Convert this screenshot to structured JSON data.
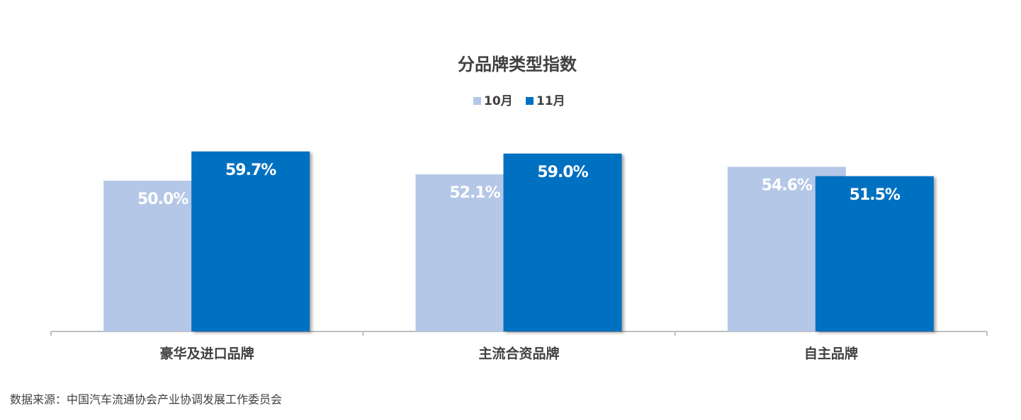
{
  "chart_data": {
    "type": "bar",
    "title": "分品牌类型指数",
    "categories": [
      "豪华及进口品牌",
      "主流合资品牌",
      "自主品牌"
    ],
    "series": [
      {
        "name": "10月",
        "color": "#b4c7e7",
        "values": [
          50.0,
          52.1,
          54.6
        ],
        "value_labels": [
          "50.0%",
          "52.1%",
          "54.6%"
        ]
      },
      {
        "name": "11月",
        "color": "#0070c0",
        "values": [
          59.7,
          59.0,
          51.5
        ],
        "value_labels": [
          "59.7%",
          "59.0%",
          "51.5%"
        ]
      }
    ],
    "ylim": [
      0,
      70
    ],
    "source": "数据来源：中国汽车流通协会产业协调发展工作委员会"
  }
}
